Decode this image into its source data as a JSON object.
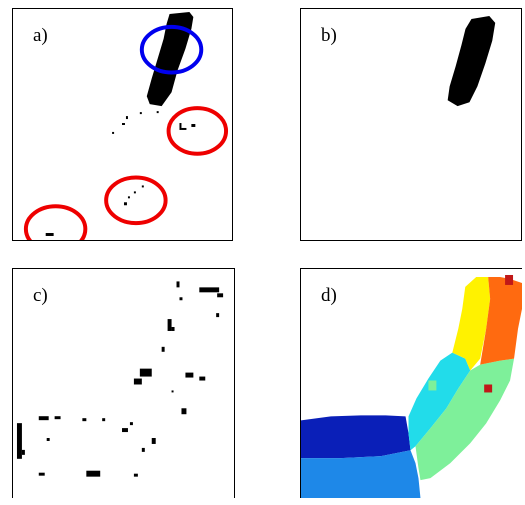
{
  "panels": [
    {
      "label": "a)"
    },
    {
      "label": "b)"
    },
    {
      "label": "c)"
    },
    {
      "label": "d)"
    }
  ],
  "colors": {
    "highlight_blue": "#0000ee",
    "highlight_red": "#ee0000",
    "seg_dark_blue": "#0a1fb8",
    "seg_light_blue": "#1e88e8",
    "seg_cyan": "#22dcea",
    "seg_green": "#7ef09a",
    "seg_yellow": "#fff200",
    "seg_orange": "#ff6a10",
    "seg_dark_red": "#c01818"
  }
}
